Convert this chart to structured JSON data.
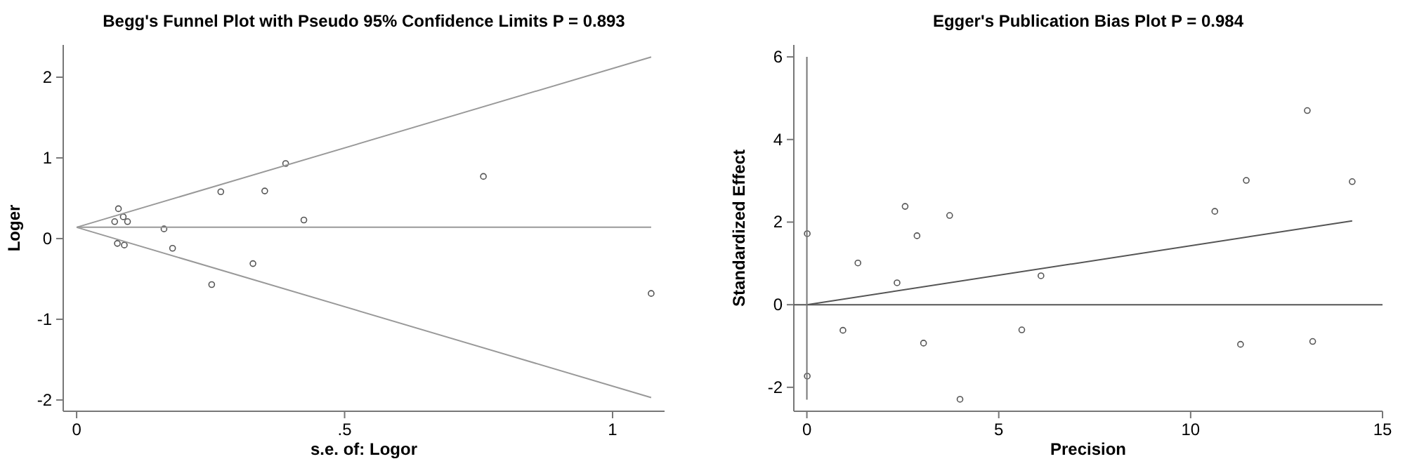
{
  "chart_data": [
    {
      "type": "scatter",
      "title": "Begg's Funnel Plot with Pseudo 95% Confidence Limits   P = 0.893",
      "xlabel": "s.e. of: Logor",
      "ylabel": "Loger",
      "xlim": [
        -0.025,
        1.097
      ],
      "ylim": [
        -2.14,
        2.4
      ],
      "xticks": [
        0,
        {
          "value": 0.5,
          "label": ".5"
        },
        1
      ],
      "yticks": [
        -2,
        -1,
        0,
        1,
        2
      ],
      "grid": false,
      "marker": "circle",
      "series": [
        {
          "color": "#555555",
          "x": [
            0.078,
            0.071,
            0.087,
            0.095,
            0.076,
            0.089,
            0.163,
            0.179,
            0.269,
            0.351,
            0.39,
            0.329,
            0.252,
            0.424,
            0.759,
            1.072
          ],
          "values": [
            0.37,
            0.21,
            0.27,
            0.21,
            -0.06,
            -0.08,
            0.12,
            -0.12,
            0.58,
            0.59,
            0.93,
            -0.31,
            -0.57,
            0.23,
            0.77,
            -0.68
          ]
        },
        {
          "type": "line",
          "marker": "none",
          "color": "#999999",
          "x": [
            0,
            1.072
          ],
          "values": [
            0.14,
            2.25
          ]
        },
        {
          "type": "line",
          "marker": "none",
          "color": "#999999",
          "x": [
            0,
            1.072
          ],
          "values": [
            0.14,
            0.14
          ]
        },
        {
          "type": "line",
          "marker": "none",
          "color": "#999999",
          "x": [
            0,
            1.072
          ],
          "values": [
            0.14,
            -1.97
          ]
        }
      ]
    },
    {
      "type": "scatter",
      "title": "Egger's Publication Bias Plot   P = 0.984",
      "xlabel": "Precision",
      "ylabel": "Standardized Effect",
      "xlim": [
        -0.34,
        15
      ],
      "ylim": [
        -2.58,
        6.29
      ],
      "xticks": [
        0,
        5,
        10,
        15
      ],
      "yticks": [
        -2,
        0,
        2,
        4,
        6
      ],
      "grid": false,
      "marker": "circle",
      "ref_lines": [
        {
          "axis": "y",
          "value": 0,
          "color": "#555555"
        }
      ],
      "series": [
        {
          "color": "#555555",
          "x": [
            0.01,
            0.01,
            0.94,
            1.33,
            2.35,
            2.56,
            2.87,
            3.04,
            3.72,
            3.99,
            5.6,
            6.1,
            10.63,
            11.3,
            11.45,
            13.04,
            13.18,
            14.21
          ],
          "values": [
            1.72,
            -1.73,
            -0.62,
            1.01,
            0.53,
            2.38,
            1.67,
            -0.93,
            2.16,
            -2.29,
            -0.61,
            0.7,
            2.26,
            -0.96,
            3.01,
            4.7,
            -0.89,
            2.98
          ]
        },
        {
          "type": "line",
          "marker": "none",
          "color": "#555555",
          "x": [
            0,
            14.21
          ],
          "values": [
            0,
            2.03
          ]
        },
        {
          "type": "line",
          "marker": "none",
          "color": "#777777",
          "x": [
            0,
            0
          ],
          "values": [
            -2.3,
            6
          ]
        }
      ]
    }
  ]
}
